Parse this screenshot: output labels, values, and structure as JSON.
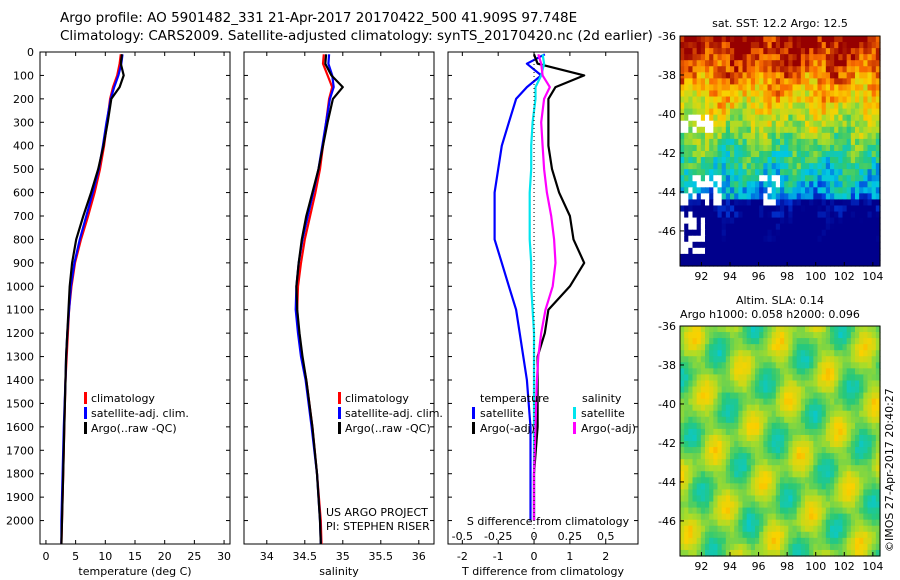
{
  "header": {
    "line1": "Argo profile: AO 5901482_331 21-Apr-2017 20170422_500 41.909S 97.748E",
    "line2": "Climatology: CARS2009. Satellite-adjusted climatology: synTS_20170420.nc (2d earlier)"
  },
  "depth_ticks": [
    0,
    100,
    200,
    300,
    400,
    500,
    600,
    700,
    800,
    900,
    1000,
    1100,
    1200,
    1300,
    1400,
    1500,
    1600,
    1700,
    1800,
    1900,
    2000
  ],
  "colors": {
    "climatology": "#ff0000",
    "satellite": "#0000ff",
    "argo": "#000000",
    "sal_satellite": "#00e5ee",
    "sal_argo": "#ff00ff"
  },
  "chart_data": [
    {
      "id": "temperature",
      "type": "line",
      "xlabel": "temperature (deg C)",
      "xlim": [
        -1,
        31
      ],
      "ylim": [
        2100,
        0
      ],
      "xticks": [
        "0",
        "5",
        "10",
        "15",
        "20",
        "25",
        "30"
      ],
      "legend": [
        "climatology",
        "satellite-adj. clim.",
        "Argo(..raw -QC)"
      ],
      "legend_position": "bottom-left",
      "series": [
        {
          "name": "climatology",
          "color": "#ff0000",
          "depth": [
            10,
            50,
            100,
            150,
            200,
            300,
            400,
            500,
            600,
            700,
            800,
            900,
            1000,
            1100,
            1200,
            1300,
            1400,
            1600,
            1800,
            2000,
            2100
          ],
          "values": [
            12.6,
            12.4,
            12.0,
            11.3,
            10.8,
            10.3,
            9.8,
            9.1,
            8.2,
            7.1,
            5.9,
            4.9,
            4.3,
            3.9,
            3.7,
            3.5,
            3.3,
            3.1,
            2.9,
            2.7,
            2.6
          ]
        },
        {
          "name": "satellite-adj. clim.",
          "color": "#0000ff",
          "depth": [
            10,
            50,
            100,
            150,
            200,
            300,
            400,
            500,
            600,
            700,
            800,
            900,
            1000,
            1100,
            1200,
            1300,
            1400,
            1600,
            1800,
            2000,
            2100
          ],
          "values": [
            12.9,
            12.7,
            12.2,
            11.5,
            10.9,
            10.2,
            9.6,
            8.9,
            7.9,
            6.8,
            5.7,
            4.8,
            4.2,
            3.9,
            3.6,
            3.4,
            3.3,
            3.0,
            2.8,
            2.6,
            2.6
          ]
        },
        {
          "name": "Argo(..raw -QC)",
          "color": "#000000",
          "depth": [
            10,
            50,
            100,
            150,
            200,
            300,
            400,
            500,
            600,
            700,
            800,
            900,
            1000,
            1100,
            1200,
            1300,
            1400,
            1600,
            1800,
            2000,
            2100
          ],
          "values": [
            12.8,
            12.6,
            13.1,
            12.4,
            11.0,
            10.4,
            9.7,
            8.8,
            7.6,
            6.3,
            5.1,
            4.4,
            4.0,
            3.8,
            3.6,
            3.4,
            3.3,
            3.1,
            2.9,
            2.7,
            2.6
          ]
        }
      ]
    },
    {
      "id": "salinity",
      "type": "line",
      "xlabel": "salinity",
      "xlim": [
        33.7,
        36.2
      ],
      "ylim": [
        2100,
        0
      ],
      "xticks": [
        "34",
        "34.5",
        "35",
        "35.5",
        "36"
      ],
      "legend": [
        "climatology",
        "satellite-adj. clim.",
        "Argo(..raw -QC)"
      ],
      "legend_position": "bottom-right",
      "annotation": [
        "US ARGO PROJECT",
        "PI: STEPHEN RISER"
      ],
      "series": [
        {
          "name": "climatology",
          "color": "#ff0000",
          "depth": [
            10,
            50,
            100,
            150,
            200,
            300,
            400,
            500,
            600,
            700,
            800,
            900,
            1000,
            1100,
            1200,
            1300,
            1400,
            1600,
            1800,
            2000,
            2100
          ],
          "values": [
            34.75,
            34.74,
            34.8,
            34.86,
            34.82,
            34.78,
            34.74,
            34.7,
            34.64,
            34.57,
            34.5,
            34.45,
            34.41,
            34.4,
            34.42,
            34.46,
            34.52,
            34.6,
            34.66,
            34.71,
            34.72
          ]
        },
        {
          "name": "satellite-adj. clim.",
          "color": "#0000ff",
          "depth": [
            10,
            50,
            100,
            150,
            200,
            300,
            400,
            500,
            600,
            700,
            800,
            900,
            1000,
            1100,
            1200,
            1300,
            1400,
            1600,
            1800,
            2000,
            2100
          ],
          "values": [
            34.82,
            34.81,
            34.86,
            34.88,
            34.83,
            34.78,
            34.73,
            34.68,
            34.61,
            34.54,
            34.47,
            34.42,
            34.39,
            34.38,
            34.41,
            34.45,
            34.51,
            34.59,
            34.66,
            34.7,
            34.71
          ]
        },
        {
          "name": "Argo(..raw -QC)",
          "color": "#000000",
          "depth": [
            10,
            50,
            100,
            150,
            200,
            300,
            400,
            500,
            600,
            700,
            800,
            900,
            1000,
            1100,
            1200,
            1300,
            1400,
            1600,
            1800,
            2000,
            2100
          ],
          "values": [
            34.78,
            34.77,
            34.85,
            35.0,
            34.87,
            34.8,
            34.74,
            34.68,
            34.6,
            34.52,
            34.46,
            34.42,
            34.39,
            34.4,
            34.43,
            34.47,
            34.52,
            34.6,
            34.66,
            34.7,
            34.71
          ]
        }
      ]
    },
    {
      "id": "differences",
      "type": "line",
      "xlabel": "T difference from climatology",
      "xlabel2": "S difference from climatology",
      "xlim": [
        -2.4,
        2.9
      ],
      "ylim": [
        2100,
        0
      ],
      "xticks": [
        "-2",
        "-1",
        "0",
        "1",
        "2"
      ],
      "sticks": [
        "-0.5",
        "-0.25",
        "0",
        "0.25",
        "0.5"
      ],
      "legend_headers": [
        "temperature",
        "salinity"
      ],
      "legend": [
        "satellite",
        "Argo(-adj)",
        "satellite",
        "Argo(-adj)"
      ],
      "legend_position": "bottom",
      "series": [
        {
          "name": "temperature satellite",
          "color": "#0000ff",
          "depth": [
            10,
            50,
            100,
            150,
            200,
            300,
            400,
            500,
            600,
            700,
            800,
            900,
            1000,
            1100,
            1200,
            1300,
            1400,
            1600,
            1800,
            2000
          ],
          "values": [
            0.3,
            -0.2,
            0.2,
            -0.2,
            -0.5,
            -0.7,
            -0.9,
            -1.0,
            -1.1,
            -1.1,
            -1.1,
            -0.9,
            -0.7,
            -0.5,
            -0.4,
            -0.3,
            -0.2,
            -0.1,
            -0.1,
            -0.1
          ]
        },
        {
          "name": "temperature Argo(-adj)",
          "color": "#000000",
          "depth": [
            10,
            50,
            100,
            150,
            200,
            300,
            400,
            500,
            600,
            700,
            800,
            900,
            1000,
            1100,
            1200,
            1300,
            1400,
            1600,
            1800,
            2000
          ],
          "values": [
            0.0,
            0.1,
            1.4,
            0.6,
            0.4,
            0.4,
            0.4,
            0.5,
            0.7,
            1.0,
            1.1,
            1.4,
            1.0,
            0.4,
            0.3,
            0.1,
            0.1,
            0.1,
            0.0,
            0.0
          ]
        },
        {
          "name": "salinity satellite",
          "color": "#00e5ee",
          "depth": [
            10,
            50,
            100,
            150,
            200,
            300,
            400,
            500,
            600,
            700,
            800,
            900,
            1000,
            1100,
            1200,
            1300,
            1400,
            1600,
            1800,
            2000
          ],
          "values": [
            0.06,
            0.07,
            0.05,
            0.01,
            0.01,
            -0.01,
            -0.02,
            -0.02,
            -0.03,
            -0.03,
            -0.03,
            -0.02,
            -0.02,
            -0.01,
            0.0,
            0.0,
            0.0,
            0.0,
            0.0,
            0.0
          ]
        },
        {
          "name": "salinity Argo(-adj)",
          "color": "#ff00ff",
          "depth": [
            10,
            50,
            100,
            150,
            200,
            300,
            400,
            500,
            600,
            700,
            800,
            900,
            1000,
            1100,
            1200,
            1300,
            1400,
            1600,
            1800,
            2000
          ],
          "values": [
            0.03,
            0.05,
            0.06,
            0.11,
            0.07,
            0.05,
            0.06,
            0.07,
            0.09,
            0.12,
            0.14,
            0.15,
            0.13,
            0.08,
            0.05,
            0.03,
            0.02,
            0.01,
            0.0,
            0.0
          ]
        }
      ]
    },
    {
      "id": "sst_map",
      "type": "heatmap",
      "title": "sat. SST: 12.2  Argo: 12.5",
      "xticks": [
        "92",
        "94",
        "96",
        "98",
        "100",
        "102",
        "104"
      ],
      "yticks": [
        "-36",
        "-38",
        "-40",
        "-42",
        "-44",
        "-46"
      ],
      "xlim": [
        90.5,
        104.5
      ],
      "ylim": [
        -47.8,
        -36
      ]
    },
    {
      "id": "sla_map",
      "type": "heatmap",
      "title": "Altim. SLA: 0.14",
      "subtitle": "Argo h1000: 0.058 h2000: 0.096",
      "xticks": [
        "92",
        "94",
        "96",
        "98",
        "100",
        "102",
        "104"
      ],
      "yticks": [
        "-36",
        "-38",
        "-40",
        "-42",
        "-44",
        "-46"
      ],
      "xlim": [
        90.5,
        104.5
      ],
      "ylim": [
        -47.8,
        -36
      ]
    }
  ],
  "watermark": "©IMOS 27-Apr-2017 20:40:27"
}
